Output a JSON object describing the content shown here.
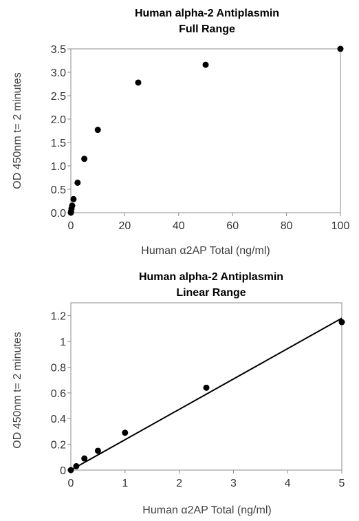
{
  "chart_data": [
    {
      "type": "scatter",
      "title": [
        "Human alpha-2 Antiplasmin",
        "Full Range"
      ],
      "xlabel": "Human α2AP Total (ng/ml)",
      "ylabel": "OD 450nm t= 2 minutes",
      "xlim": [
        0,
        100
      ],
      "ylim": [
        0,
        3.5
      ],
      "xticks": [
        "0",
        "20",
        "40",
        "60",
        "80",
        "100"
      ],
      "yticks": [
        "0.0",
        "0.5",
        "1.0",
        "1.5",
        "2.0",
        "2.5",
        "3.0",
        "3.5"
      ],
      "grid": false,
      "legend": "none",
      "marker_color": "#000000",
      "series": [
        {
          "x": [
            0,
            0.1,
            0.25,
            0.5,
            1,
            2.5,
            5,
            10,
            25,
            50,
            100
          ],
          "y": [
            0.0,
            0.03,
            0.09,
            0.15,
            0.29,
            0.64,
            1.15,
            1.77,
            2.78,
            3.16,
            3.5
          ]
        }
      ]
    },
    {
      "type": "scatter",
      "title": [
        "Human alpha-2 Antiplasmin",
        "Linear Range"
      ],
      "xlabel": "Human α2AP Total (ng/ml)",
      "ylabel": "OD 450nm t= 2 minutes",
      "xlim": [
        0,
        5
      ],
      "ylim": [
        0,
        1.3
      ],
      "xticks": [
        "0",
        "1",
        "2",
        "3",
        "4",
        "5"
      ],
      "yticks": [
        "0",
        "0.2",
        "0.4",
        "0.6",
        "0.8",
        "1",
        "1.2"
      ],
      "grid": false,
      "legend": "none",
      "marker_color": "#000000",
      "series": [
        {
          "x": [
            0,
            0.1,
            0.25,
            0.5,
            1,
            2.5,
            5
          ],
          "y": [
            0.0,
            0.03,
            0.09,
            0.15,
            0.29,
            0.64,
            1.15
          ]
        }
      ],
      "trendline": {
        "type": "linear",
        "x": [
          0,
          5
        ],
        "y": [
          0.0,
          1.18
        ]
      }
    }
  ]
}
